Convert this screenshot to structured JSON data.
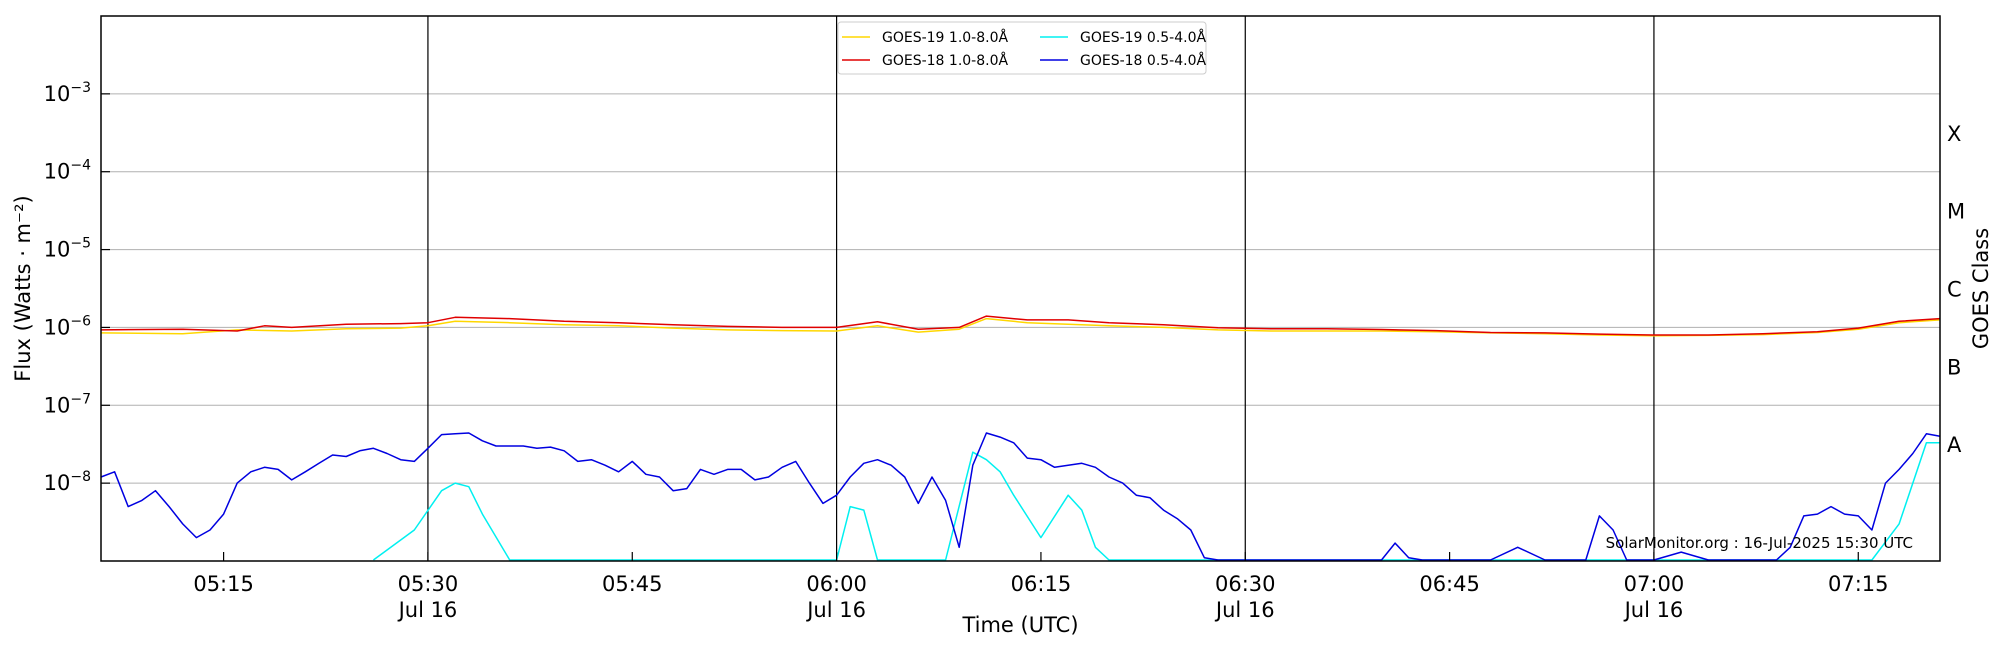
{
  "chart_data": {
    "type": "line",
    "title": "",
    "xlabel": "Time (UTC)",
    "ylabel": "Flux (Watts · m⁻²)",
    "right_label": "GOES Class",
    "y_scale": "log",
    "ylim": [
      "1e-9",
      "1e-2"
    ],
    "xlim": [
      "05:06",
      "07:21"
    ],
    "grid": "horizontal at decades",
    "legend_position": "top-center",
    "watermark": "SolarMonitor.org : 16-Jul-2025 15:30 UTC",
    "x_ticks": [
      {
        "time": "05:15",
        "label": "05:15",
        "sub": ""
      },
      {
        "time": "05:30",
        "label": "05:30",
        "sub": "Jul 16"
      },
      {
        "time": "05:45",
        "label": "05:45",
        "sub": ""
      },
      {
        "time": "06:00",
        "label": "06:00",
        "sub": "Jul 16"
      },
      {
        "time": "06:15",
        "label": "06:15",
        "sub": ""
      },
      {
        "time": "06:30",
        "label": "06:30",
        "sub": "Jul 16"
      },
      {
        "time": "06:45",
        "label": "06:45",
        "sub": ""
      },
      {
        "time": "07:00",
        "label": "07:00",
        "sub": "Jul 16"
      },
      {
        "time": "07:15",
        "label": "07:15",
        "sub": ""
      }
    ],
    "vlines": [
      "05:30",
      "06:00",
      "06:30",
      "07:00"
    ],
    "y_ticks": [
      {
        "exp": -3,
        "base": "10",
        "sup": "−3"
      },
      {
        "exp": -4,
        "base": "10",
        "sup": "−4"
      },
      {
        "exp": -5,
        "base": "10",
        "sup": "−5"
      },
      {
        "exp": -6,
        "base": "10",
        "sup": "−6"
      },
      {
        "exp": -7,
        "base": "10",
        "sup": "−7"
      },
      {
        "exp": -8,
        "base": "10",
        "sup": "−8"
      }
    ],
    "goes_classes": [
      {
        "label": "X",
        "exp": -3.5
      },
      {
        "label": "M",
        "exp": -4.5
      },
      {
        "label": "C",
        "exp": -5.5
      },
      {
        "label": "B",
        "exp": -6.5
      },
      {
        "label": "A",
        "exp": -7.5
      }
    ],
    "series": [
      {
        "name": "GOES-19 1.0-8.0Å",
        "color": "#ffd700",
        "x": [
          "05:06",
          "05:12",
          "05:16",
          "05:20",
          "05:24",
          "05:28",
          "05:30",
          "05:32",
          "05:36",
          "05:40",
          "05:44",
          "05:48",
          "05:52",
          "05:56",
          "06:00",
          "06:03",
          "06:06",
          "06:09",
          "06:11",
          "06:14",
          "06:17",
          "06:20",
          "06:24",
          "06:28",
          "06:32",
          "06:36",
          "06:40",
          "06:44",
          "06:48",
          "06:52",
          "06:56",
          "07:00",
          "07:04",
          "07:08",
          "07:12",
          "07:15",
          "07:18",
          "07:21"
        ],
        "y": [
          "8.5e-7",
          "8.3e-7",
          "9.3e-7",
          "9.0e-7",
          "9.6e-7",
          "9.8e-7",
          "1.05e-6",
          "1.2e-6",
          "1.15e-6",
          "1.08e-6",
          "1.05e-6",
          "9.8e-7",
          "9.3e-7",
          "9.1e-7",
          "9.0e-7",
          "1.05e-6",
          "8.7e-7",
          "9.5e-7",
          "1.3e-6",
          "1.15e-6",
          "1.1e-6",
          "1.05e-6",
          "1.0e-6",
          "9.3e-7",
          "9.0e-7",
          "9.0e-7",
          "9.0e-7",
          "8.8e-7",
          "8.5e-7",
          "8.3e-7",
          "8.0e-7",
          "7.8e-7",
          "7.9e-7",
          "8.1e-7",
          "8.6e-7",
          "9.5e-7",
          "1.15e-6",
          "1.25e-6"
        ]
      },
      {
        "name": "GOES-18 1.0-8.0Å",
        "color": "#e00000",
        "x": [
          "05:06",
          "05:12",
          "05:16",
          "05:18",
          "05:20",
          "05:24",
          "05:28",
          "05:30",
          "05:32",
          "05:36",
          "05:40",
          "05:44",
          "05:48",
          "05:52",
          "05:56",
          "06:00",
          "06:03",
          "06:06",
          "06:09",
          "06:11",
          "06:14",
          "06:17",
          "06:20",
          "06:24",
          "06:28",
          "06:32",
          "06:36",
          "06:40",
          "06:44",
          "06:48",
          "06:52",
          "06:56",
          "07:00",
          "07:04",
          "07:08",
          "07:12",
          "07:15",
          "07:18",
          "07:21"
        ],
        "y": [
          "9.3e-7",
          "9.5e-7",
          "9.0e-7",
          "1.05e-6",
          "1.0e-6",
          "1.1e-6",
          "1.12e-6",
          "1.15e-6",
          "1.35e-6",
          "1.3e-6",
          "1.2e-6",
          "1.15e-6",
          "1.08e-6",
          "1.03e-6",
          "1.0e-6",
          "1.0e-6",
          "1.18e-6",
          "9.5e-7",
          "1.0e-6",
          "1.4e-6",
          "1.25e-6",
          "1.25e-6",
          "1.15e-6",
          "1.08e-6",
          "9.9e-7",
          "9.6e-7",
          "9.6e-7",
          "9.4e-7",
          "9.1e-7",
          "8.6e-7",
          "8.5e-7",
          "8.2e-7",
          "8.0e-7",
          "8.0e-7",
          "8.3e-7",
          "8.8e-7",
          "9.8e-7",
          "1.2e-6",
          "1.3e-6"
        ]
      },
      {
        "name": "GOES-19 0.5-4.0Å",
        "color": "#00f0f0",
        "x": [
          "05:26",
          "05:29",
          "05:31",
          "05:32",
          "05:33",
          "05:34",
          "05:36",
          "05:38",
          "05:40",
          "06:00",
          "06:01",
          "06:02",
          "06:03",
          "06:05",
          "06:08",
          "06:10",
          "06:11",
          "06:12",
          "06:13",
          "06:15",
          "06:17",
          "06:18",
          "06:19",
          "06:20",
          "06:21",
          "06:22",
          "06:23",
          "06:24",
          "06:25",
          "06:26",
          "06:27",
          "06:28",
          "06:29",
          "06:30",
          "06:32",
          "06:40",
          "06:50",
          "07:00",
          "07:10",
          "07:16",
          "07:18",
          "07:20",
          "07:21"
        ],
        "y": [
          "1e-9",
          "2.5e-9",
          "8e-9",
          "1e-8",
          "9e-9",
          "4e-9",
          "1e-9",
          "1e-9",
          "1e-9",
          "1e-9",
          "5e-9",
          "4.5e-9",
          "1e-9",
          "1e-9",
          "1e-9",
          "2.5e-8",
          "2e-8",
          "1.4e-8",
          "7e-9",
          "2e-9",
          "7e-9",
          "4.5e-9",
          "1.5e-9",
          "1e-9",
          "1e-9",
          "1e-9",
          "1e-9",
          "1e-9",
          "1e-9",
          "1e-9",
          "1e-9",
          "1e-9",
          "1e-9",
          "1e-9",
          "1e-9",
          "1e-9",
          "1e-9",
          "1e-9",
          "1e-9",
          "1e-9",
          "3e-9",
          "3.3e-8",
          "3.3e-8"
        ]
      },
      {
        "name": "GOES-18 0.5-4.0Å",
        "color": "#0000e0",
        "x": [
          "05:06",
          "05:07",
          "05:08",
          "05:09",
          "05:10",
          "05:11",
          "05:12",
          "05:13",
          "05:14",
          "05:15",
          "05:16",
          "05:17",
          "05:18",
          "05:19",
          "05:20",
          "05:21",
          "05:22",
          "05:23",
          "05:24",
          "05:25",
          "05:26",
          "05:27",
          "05:28",
          "05:29",
          "05:30",
          "05:31",
          "05:32",
          "05:33",
          "05:34",
          "05:35",
          "05:36",
          "05:37",
          "05:38",
          "05:39",
          "05:40",
          "05:41",
          "05:42",
          "05:43",
          "05:44",
          "05:45",
          "05:46",
          "05:47",
          "05:48",
          "05:49",
          "05:50",
          "05:51",
          "05:52",
          "05:53",
          "05:54",
          "05:55",
          "05:56",
          "05:57",
          "05:58",
          "05:59",
          "06:00",
          "06:01",
          "06:02",
          "06:03",
          "06:04",
          "06:05",
          "06:06",
          "06:07",
          "06:08",
          "06:09",
          "06:10",
          "06:11",
          "06:12",
          "06:13",
          "06:14",
          "06:15",
          "06:16",
          "06:17",
          "06:18",
          "06:19",
          "06:20",
          "06:21",
          "06:22",
          "06:23",
          "06:24",
          "06:25",
          "06:26",
          "06:27",
          "06:28",
          "06:30",
          "06:40",
          "06:41",
          "06:42",
          "06:43",
          "06:48",
          "06:50",
          "06:52",
          "06:53",
          "06:54",
          "06:55",
          "06:56",
          "06:57",
          "06:58",
          "07:00",
          "07:02",
          "07:04",
          "07:05",
          "07:06",
          "07:07",
          "07:08",
          "07:09",
          "07:10",
          "07:11",
          "07:12",
          "07:13",
          "07:14",
          "07:15",
          "07:16",
          "07:17",
          "07:18",
          "07:19",
          "07:20",
          "07:21"
        ],
        "y": [
          "1.2e-8",
          "1.4e-8",
          "5e-9",
          "6e-9",
          "8e-9",
          "5e-9",
          "3e-9",
          "2e-9",
          "2.5e-9",
          "4e-9",
          "1e-8",
          "1.4e-8",
          "1.6e-8",
          "1.5e-8",
          "1.1e-8",
          "1.4e-8",
          "1.8e-8",
          "2.3e-8",
          "2.2e-8",
          "2.6e-8",
          "2.8e-8",
          "2.4e-8",
          "2e-8",
          "1.9e-8",
          "2.8e-8",
          "4.2e-8",
          "4.3e-8",
          "4.4e-8",
          "3.5e-8",
          "3e-8",
          "3e-8",
          "3e-8",
          "2.8e-8",
          "2.9e-8",
          "2.6e-8",
          "1.9e-8",
          "2e-8",
          "1.7e-8",
          "1.4e-8",
          "1.9e-8",
          "1.3e-8",
          "1.2e-8",
          "8e-9",
          "8.5e-9",
          "1.5e-8",
          "1.3e-8",
          "1.5e-8",
          "1.5e-8",
          "1.1e-8",
          "1.2e-8",
          "1.6e-8",
          "1.9e-8",
          "1e-8",
          "5.5e-9",
          "7e-9",
          "1.2e-8",
          "1.8e-8",
          "2e-8",
          "1.7e-8",
          "1.2e-8",
          "5.5e-9",
          "1.2e-8",
          "6e-9",
          "1.5e-9",
          "1.7e-8",
          "4.4e-8",
          "3.9e-8",
          "3.3e-8",
          "2.1e-8",
          "2e-8",
          "1.6e-8",
          "1.7e-8",
          "1.8e-8",
          "1.6e-8",
          "1.2e-8",
          "1e-8",
          "7e-9",
          "6.5e-9",
          "4.5e-9",
          "3.5e-9",
          "2.5e-9",
          "1.1e-9",
          "1e-9",
          "1e-9",
          "1e-9",
          "1.7e-9",
          "1.1e-9",
          "1e-9",
          "1e-9",
          "1.5e-9",
          "1e-9",
          "1e-9",
          "1e-9",
          "1e-9",
          "3.8e-9",
          "2.5e-9",
          "1e-9",
          "1e-9",
          "1.3e-9",
          "1e-9",
          "1e-9",
          "1e-9",
          "1e-9",
          "1e-9",
          "1e-9",
          "1.5e-9",
          "3.8e-9",
          "4e-9",
          "5e-9",
          "4e-9",
          "3.8e-9",
          "2.5e-9",
          "1e-8",
          "1.5e-8",
          "2.4e-8",
          "4.3e-8",
          "4e-8"
        ]
      }
    ]
  }
}
